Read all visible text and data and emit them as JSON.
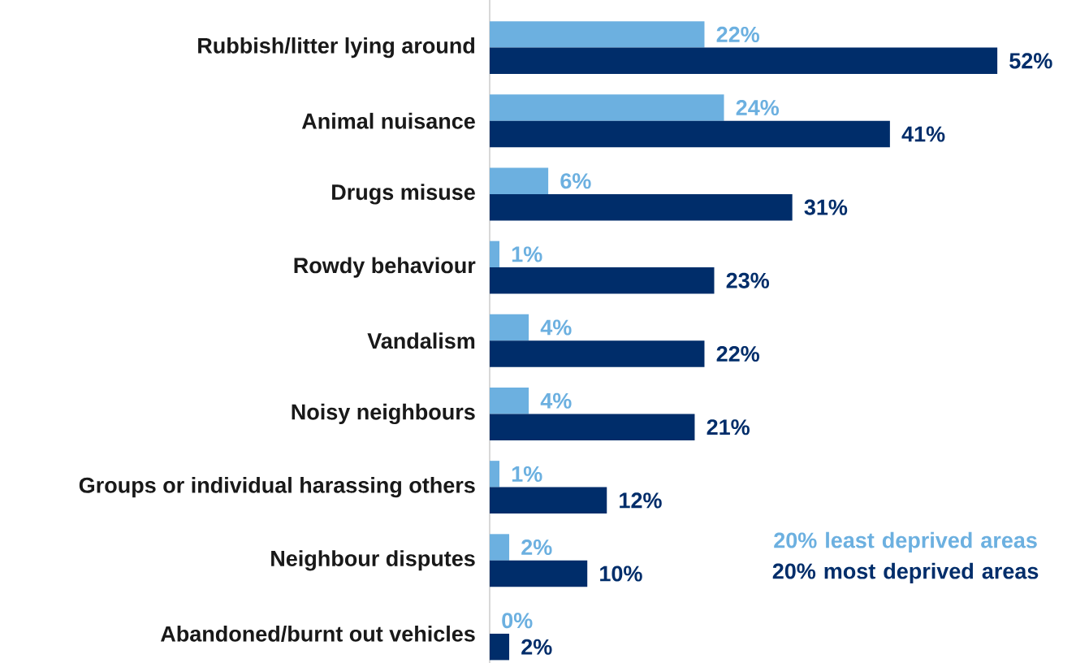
{
  "chart_data": {
    "type": "bar",
    "orientation": "horizontal",
    "categories": [
      "Rubbish/litter lying around",
      "Animal nuisance",
      "Drugs misuse",
      "Rowdy behaviour",
      "Vandalism",
      "Noisy neighbours",
      "Groups or individual harassing others",
      "Neighbour disputes",
      "Abandoned/burnt out vehicles"
    ],
    "series": [
      {
        "name": "20% least deprived areas",
        "color": "#6cb0e0",
        "values": [
          22,
          24,
          6,
          1,
          4,
          4,
          1,
          2,
          0
        ],
        "value_labels": [
          "22%",
          "24%",
          "6%",
          "1%",
          "4%",
          "4%",
          "1%",
          "2%",
          "0%"
        ]
      },
      {
        "name": "20% most deprived areas",
        "color": "#002d6a",
        "values": [
          52,
          41,
          31,
          23,
          22,
          21,
          12,
          10,
          2
        ],
        "value_labels": [
          "52%",
          "41%",
          "31%",
          "23%",
          "22%",
          "21%",
          "12%",
          "10%",
          "2%"
        ]
      }
    ],
    "legend": "bottom right"
  }
}
